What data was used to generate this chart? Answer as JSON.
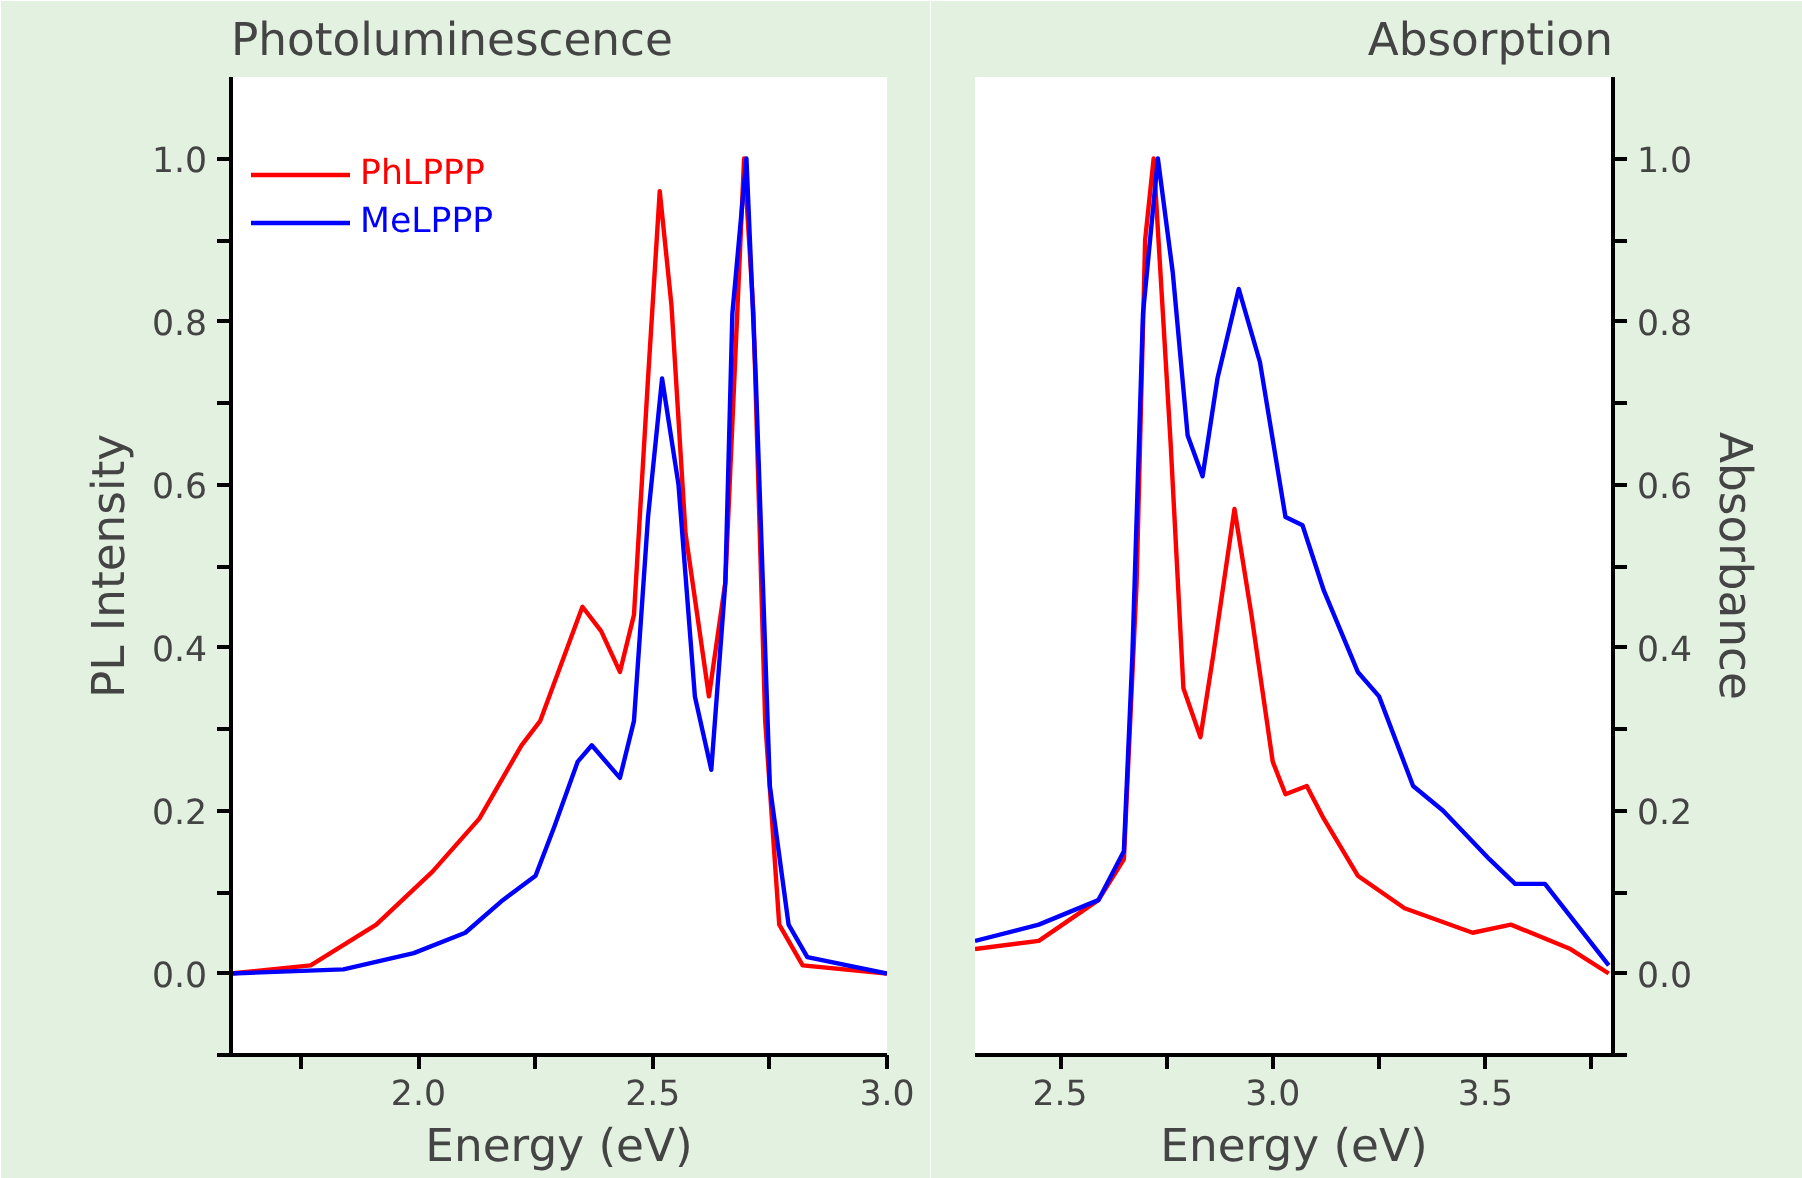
{
  "chart_data": [
    {
      "type": "line",
      "title": "Photoluminescence",
      "xlabel": "Energy (eV)",
      "ylabel": "PL Intensity",
      "xlim": [
        1.6,
        3.0
      ],
      "ylim": [
        -0.1,
        1.1
      ],
      "xticks": [
        {
          "value": 1.75,
          "label": null
        },
        {
          "value": 2.0,
          "label": "2.0"
        },
        {
          "value": 2.25,
          "label": null
        },
        {
          "value": 2.5,
          "label": "2.5"
        },
        {
          "value": 2.75,
          "label": null
        },
        {
          "value": 3.0,
          "label": "3.0"
        }
      ],
      "yticks": [
        {
          "value": -0.1,
          "label": null
        },
        {
          "value": 0,
          "label": "0.0"
        },
        {
          "value": 0.1,
          "label": null
        },
        0.2,
        {
          "value": 0.3,
          "label": null
        },
        0.4,
        {
          "value": 0.5,
          "label": null
        },
        0.6,
        {
          "value": 0.7,
          "label": null
        },
        0.8,
        {
          "value": 0.9,
          "label": null
        },
        {
          "value": 1.0,
          "label": "1.0"
        }
      ],
      "grid": false,
      "legend": "top left",
      "line_style": "solid",
      "marker": "none",
      "series": [
        {
          "name": "PhLPPP",
          "color": "#ff0000",
          "x": [
            1.6,
            1.77,
            1.91,
            2.03,
            2.13,
            2.22,
            2.26,
            2.35,
            2.39,
            2.43,
            2.46,
            2.49,
            2.515,
            2.54,
            2.57,
            2.62,
            2.655,
            2.695,
            2.715,
            2.74,
            2.77,
            2.82,
            3.0
          ],
          "values": [
            0.0,
            0.01,
            0.06,
            0.125,
            0.19,
            0.28,
            0.31,
            0.45,
            0.42,
            0.37,
            0.44,
            0.73,
            0.96,
            0.82,
            0.54,
            0.34,
            0.48,
            1.0,
            0.81,
            0.31,
            0.06,
            0.01,
            0.0
          ]
        },
        {
          "name": "MeLPPP",
          "color": "#0000ff",
          "x": [
            1.6,
            1.84,
            1.99,
            2.1,
            2.18,
            2.25,
            2.29,
            2.34,
            2.37,
            2.43,
            2.46,
            2.49,
            2.52,
            2.555,
            2.59,
            2.625,
            2.655,
            2.67,
            2.7,
            2.72,
            2.75,
            2.79,
            2.83,
            3.0
          ],
          "values": [
            0.0,
            0.005,
            0.025,
            0.05,
            0.09,
            0.12,
            0.18,
            0.26,
            0.28,
            0.24,
            0.31,
            0.56,
            0.73,
            0.6,
            0.34,
            0.25,
            0.48,
            0.81,
            1.0,
            0.73,
            0.23,
            0.06,
            0.02,
            0.0
          ]
        }
      ]
    },
    {
      "type": "line",
      "title": "Absorption",
      "xlabel": "Energy (eV)",
      "y2label": "Absorbance",
      "xlim": [
        2.3,
        3.8
      ],
      "y2lim": [
        -0.1,
        1.1
      ],
      "xticks": [
        {
          "value": 2.5,
          "label": "2.5"
        },
        {
          "value": 2.75,
          "label": null
        },
        {
          "value": 3.0,
          "label": "3.0"
        },
        {
          "value": 3.25,
          "label": null
        },
        {
          "value": 3.5,
          "label": "3.5"
        },
        {
          "value": 3.75,
          "label": null
        }
      ],
      "y2ticks": [
        {
          "value": -0.1,
          "label": null
        },
        {
          "value": 0,
          "label": "0.0"
        },
        {
          "value": 0.1,
          "label": null
        },
        0.2,
        {
          "value": 0.3,
          "label": null
        },
        0.4,
        {
          "value": 0.5,
          "label": null
        },
        0.6,
        {
          "value": 0.7,
          "label": null
        },
        0.8,
        {
          "value": 0.9,
          "label": null
        },
        {
          "value": 1.0,
          "label": "1.0"
        }
      ],
      "grid": false,
      "legend": false,
      "line_style": "solid",
      "marker": "none",
      "series": [
        {
          "color": "#ff0000",
          "axis": "y2",
          "x": [
            2.3,
            2.45,
            2.59,
            2.65,
            2.68,
            2.7,
            2.72,
            2.76,
            2.79,
            2.83,
            2.86,
            2.91,
            2.95,
            3.0,
            3.03,
            3.08,
            3.12,
            3.2,
            3.31,
            3.47,
            3.56,
            3.7,
            3.79
          ],
          "values": [
            0.03,
            0.04,
            0.09,
            0.14,
            0.48,
            0.9,
            1.0,
            0.65,
            0.35,
            0.29,
            0.39,
            0.57,
            0.44,
            0.26,
            0.22,
            0.23,
            0.19,
            0.12,
            0.08,
            0.05,
            0.06,
            0.03,
            0.0
          ]
        },
        {
          "color": "#0000ff",
          "axis": "y2",
          "x": [
            2.3,
            2.45,
            2.59,
            2.65,
            2.67,
            2.695,
            2.73,
            2.765,
            2.8,
            2.835,
            2.87,
            2.92,
            2.97,
            3.03,
            3.07,
            3.12,
            3.2,
            3.25,
            3.33,
            3.4,
            3.51,
            3.57,
            3.64,
            3.715,
            3.79
          ],
          "values": [
            0.04,
            0.06,
            0.09,
            0.15,
            0.39,
            0.81,
            1.0,
            0.86,
            0.66,
            0.61,
            0.73,
            0.84,
            0.75,
            0.56,
            0.55,
            0.47,
            0.37,
            0.34,
            0.23,
            0.2,
            0.14,
            0.11,
            0.11,
            0.06,
            0.01
          ]
        }
      ]
    }
  ]
}
